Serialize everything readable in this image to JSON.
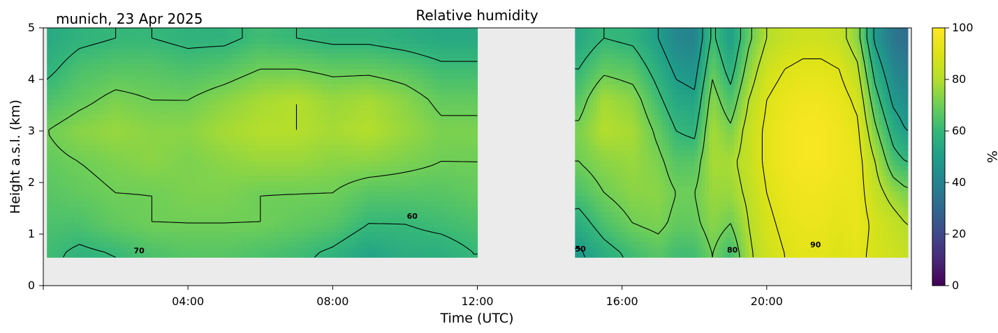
{
  "chart_data": {
    "type": "heatmap",
    "title": "Relative humidity",
    "location_date": "munich, 23 Apr 2025",
    "xlabel": "Time (UTC)",
    "ylabel": "Height a.s.l. (km)",
    "x_unit": "hours UTC",
    "xlim": [
      0,
      24
    ],
    "ylim": [
      0,
      5
    ],
    "x_tick_values": [
      4,
      8,
      12,
      16,
      20
    ],
    "x_tick_labels": [
      "04:00",
      "08:00",
      "12:00",
      "16:00",
      "20:00"
    ],
    "y_ticks": [
      0,
      1,
      2,
      3,
      4,
      5
    ],
    "colorbar": {
      "label": "%",
      "range": [
        0,
        100
      ],
      "ticks": [
        0,
        20,
        40,
        60,
        80,
        100
      ],
      "colormap": "viridis"
    },
    "missing_color": "#ebebeb",
    "data_bottom_km": 0.55,
    "data_top_km": 5,
    "gaps_hours": [
      [
        12.0,
        14.75
      ],
      [
        23.9,
        24.0
      ]
    ],
    "heights_km": [
      0.6,
      1.2,
      1.8,
      2.4,
      3.0,
      3.6,
      4.2,
      4.8
    ],
    "times_h": [
      0.1,
      1.0,
      2.0,
      3.0,
      4.0,
      5.0,
      6.0,
      7.0,
      8.0,
      9.0,
      10.0,
      11.0,
      11.95,
      14.8,
      15.5,
      16.3,
      17.0,
      17.5,
      18.0,
      18.5,
      19.0,
      19.5,
      20.0,
      20.5,
      21.0,
      21.5,
      22.0,
      22.5,
      23.0,
      23.5,
      23.85
    ],
    "rh_percent": [
      [
        62,
        58,
        60,
        64,
        66,
        66,
        64,
        62,
        58,
        52,
        56,
        56,
        60,
        48,
        56,
        62,
        66,
        62,
        62,
        70,
        62,
        78,
        86,
        90,
        92,
        92,
        90,
        92,
        88,
        86,
        84
      ],
      [
        64,
        64,
        68,
        70,
        70,
        70,
        70,
        68,
        66,
        60,
        60,
        62,
        64,
        56,
        64,
        70,
        72,
        68,
        68,
        74,
        70,
        80,
        88,
        92,
        94,
        94,
        92,
        94,
        88,
        84,
        80
      ],
      [
        66,
        68,
        70,
        70,
        72,
        72,
        70,
        70,
        70,
        66,
        66,
        66,
        68,
        64,
        70,
        74,
        74,
        70,
        70,
        76,
        76,
        82,
        90,
        94,
        96,
        96,
        94,
        94,
        84,
        76,
        72
      ],
      [
        68,
        70,
        72,
        74,
        72,
        74,
        76,
        76,
        74,
        74,
        72,
        70,
        70,
        70,
        74,
        76,
        72,
        66,
        66,
        78,
        78,
        84,
        92,
        96,
        98,
        98,
        96,
        94,
        80,
        64,
        60
      ],
      [
        70,
        74,
        76,
        74,
        74,
        78,
        80,
        80,
        78,
        80,
        76,
        72,
        72,
        72,
        80,
        78,
        68,
        60,
        58,
        78,
        72,
        84,
        92,
        96,
        98,
        98,
        96,
        92,
        72,
        56,
        50
      ],
      [
        64,
        68,
        72,
        70,
        70,
        74,
        78,
        80,
        76,
        78,
        74,
        68,
        68,
        66,
        78,
        74,
        62,
        54,
        52,
        74,
        64,
        80,
        90,
        94,
        96,
        96,
        94,
        88,
        64,
        48,
        44
      ],
      [
        58,
        64,
        66,
        66,
        64,
        66,
        70,
        70,
        68,
        68,
        66,
        62,
        62,
        60,
        68,
        66,
        56,
        48,
        46,
        68,
        56,
        74,
        86,
        90,
        92,
        92,
        90,
        82,
        56,
        42,
        38
      ],
      [
        54,
        58,
        60,
        60,
        58,
        58,
        62,
        60,
        58,
        58,
        56,
        54,
        54,
        54,
        60,
        58,
        50,
        42,
        40,
        62,
        50,
        68,
        80,
        84,
        86,
        86,
        84,
        74,
        48,
        36,
        32
      ]
    ],
    "contour_levels": [
      50,
      60,
      70,
      80,
      90
    ],
    "contour_labels": [
      {
        "text": "70",
        "x_h": 2.65,
        "y_km": 0.63
      },
      {
        "text": "60",
        "x_h": 10.2,
        "y_km": 1.3
      },
      {
        "text": "50",
        "x_h": 14.85,
        "y_km": 0.66
      },
      {
        "text": "80",
        "x_h": 19.05,
        "y_km": 0.64
      },
      {
        "text": "90",
        "x_h": 21.35,
        "y_km": 0.74
      }
    ]
  }
}
